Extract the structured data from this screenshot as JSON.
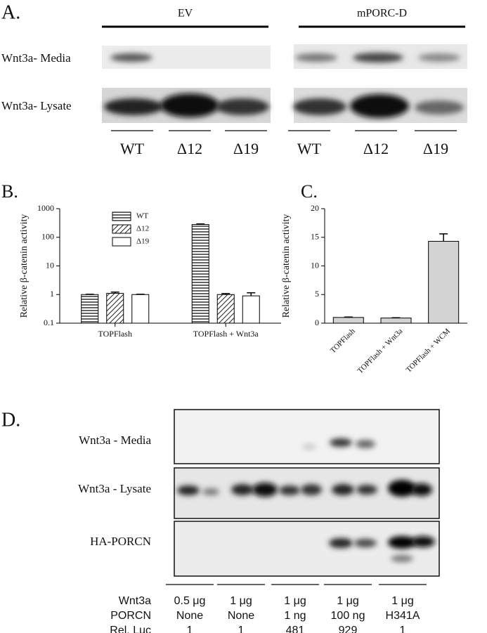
{
  "panel_a": {
    "label": "A.",
    "rows": [
      "Wnt3a- Media",
      "Wnt3a- Lysate"
    ],
    "groups": [
      {
        "name": "EV",
        "lanes": [
          "WT",
          "Δ12",
          "Δ19"
        ]
      },
      {
        "name": "mPORC-D",
        "lanes": [
          "WT",
          "Δ12",
          "Δ19"
        ]
      }
    ]
  },
  "chart_data": [
    {
      "type": "bar",
      "panel": "B.",
      "y_label": "Relative β-catenin activity",
      "log_scale": true,
      "categories": [
        "TOPFlash",
        "TOPFlash + Wnt3a"
      ],
      "series": [
        {
          "name": "WT",
          "color": "#ffffff",
          "pattern": "horizontal",
          "values": [
            1,
            280
          ],
          "errors": [
            0.02,
            12
          ]
        },
        {
          "name": "Δ12",
          "color": "#ffffff",
          "pattern": "diagonal",
          "values": [
            1.1,
            1.0
          ],
          "errors": [
            0.12,
            0.08
          ]
        },
        {
          "name": "Δ19",
          "color": "#ffffff",
          "pattern": "none",
          "values": [
            1.0,
            0.9
          ],
          "errors": [
            0.02,
            0.25
          ]
        }
      ],
      "ylim": [
        0.1,
        1000
      ],
      "yticks": [
        0.1,
        1,
        10,
        100,
        1000
      ],
      "legend": "upper left"
    },
    {
      "type": "bar",
      "panel": "C.",
      "y_label": "Relative β-catenin activity",
      "categories": [
        "TOPFlash",
        "TOPFlash + Wnt3a",
        "TOPFlash + WCM"
      ],
      "values": [
        1,
        0.9,
        14.3
      ],
      "errors": [
        0.08,
        0.05,
        1.3
      ],
      "color": "#d3d3d3",
      "ylim": [
        0,
        20
      ],
      "yticks": [
        0,
        5,
        10,
        15,
        20
      ]
    }
  ],
  "panel_d": {
    "label": "D.",
    "rows": [
      "Wnt3a - Media",
      "Wnt3a -  Lysate",
      "HA-PORCN"
    ],
    "table": {
      "rows": [
        {
          "label": "Wnt3a",
          "cells": [
            "0.5 μg",
            "1 μg",
            "1 μg",
            "1 μg",
            "1 μg"
          ]
        },
        {
          "label": "PORCN",
          "cells": [
            "None",
            "None",
            "1 ng",
            "100  ng",
            "H341A"
          ]
        },
        {
          "label": "Rel. Luc",
          "cells": [
            1,
            1,
            481,
            929,
            1
          ]
        }
      ]
    }
  }
}
